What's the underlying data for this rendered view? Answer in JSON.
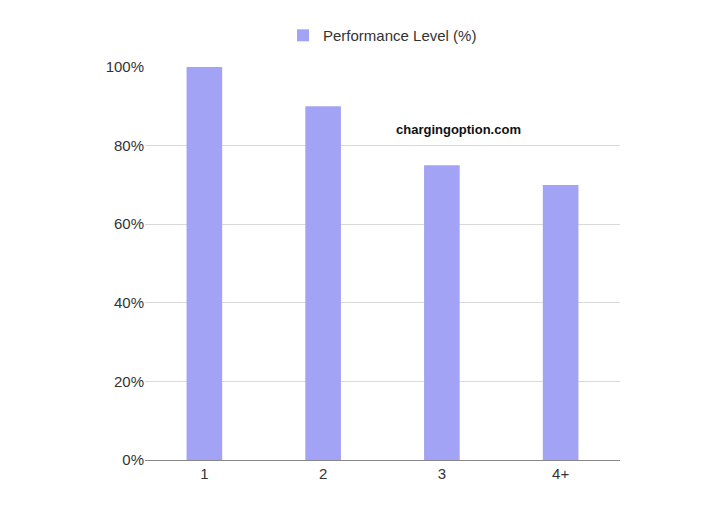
{
  "chart_data": {
    "type": "bar",
    "categories": [
      "1",
      "2",
      "3",
      "4+"
    ],
    "series": [
      {
        "name": "Performance Level (%)",
        "color": "#a3a3f5",
        "values": [
          100,
          90,
          75,
          70
        ]
      }
    ],
    "ylim": [
      0,
      100
    ],
    "yticks": [
      {
        "value": 0,
        "label": "0%"
      },
      {
        "value": 20,
        "label": "20%"
      },
      {
        "value": 40,
        "label": "40%"
      },
      {
        "value": 60,
        "label": "60%"
      },
      {
        "value": 80,
        "label": "80%"
      },
      {
        "value": 100,
        "label": "100%"
      }
    ],
    "grid": true,
    "legend": "top",
    "annotations": [
      "chargingoption.com"
    ]
  }
}
